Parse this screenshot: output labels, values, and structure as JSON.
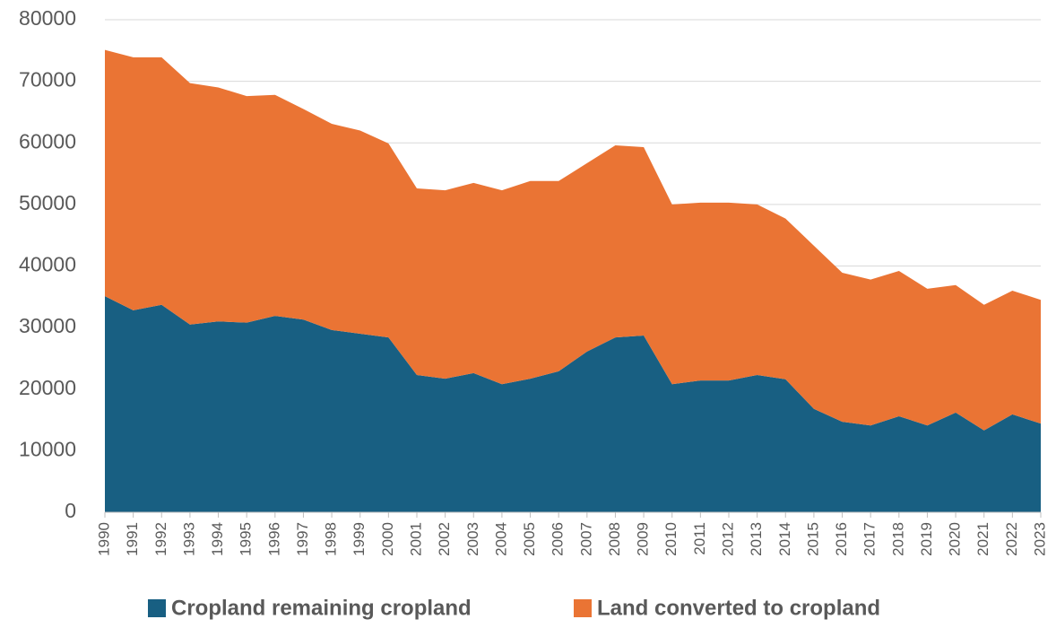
{
  "chart_data": {
    "type": "area",
    "stacked": true,
    "categories": [
      "1990",
      "1991",
      "1992",
      "1993",
      "1994",
      "1995",
      "1996",
      "1997",
      "1998",
      "1999",
      "2000",
      "2001",
      "2002",
      "2003",
      "2004",
      "2005",
      "2006",
      "2007",
      "2008",
      "2009",
      "2010",
      "2011",
      "2012",
      "2013",
      "2014",
      "2015",
      "2016",
      "2017",
      "2018",
      "2019",
      "2020",
      "2021",
      "2022",
      "2023"
    ],
    "series": [
      {
        "name": "Cropland remaining cropland",
        "color": "#185f82",
        "values": [
          35100,
          32800,
          33700,
          30500,
          31000,
          30800,
          31900,
          31300,
          29600,
          29000,
          28400,
          22300,
          21700,
          22600,
          20800,
          21700,
          22900,
          26100,
          28400,
          28700,
          20800,
          21400,
          21400,
          22300,
          21600,
          16800,
          14700,
          14100,
          15600,
          14100,
          16200,
          13300,
          15900,
          14400
        ]
      },
      {
        "name": "Land converted to cropland",
        "color": "#ea7434",
        "values": [
          40000,
          41100,
          40200,
          39200,
          38000,
          36800,
          35900,
          34200,
          33500,
          33000,
          31500,
          30300,
          30600,
          30900,
          31500,
          32100,
          30900,
          30600,
          31200,
          30600,
          29200,
          28900,
          28900,
          27700,
          26100,
          26500,
          24200,
          23700,
          23600,
          22200,
          20700,
          20400,
          20100,
          20100
        ]
      }
    ],
    "ylim": [
      0,
      80000
    ],
    "yticks": [
      0,
      10000,
      20000,
      30000,
      40000,
      50000,
      60000,
      70000,
      80000
    ],
    "grid": true,
    "legend": "bottom"
  }
}
